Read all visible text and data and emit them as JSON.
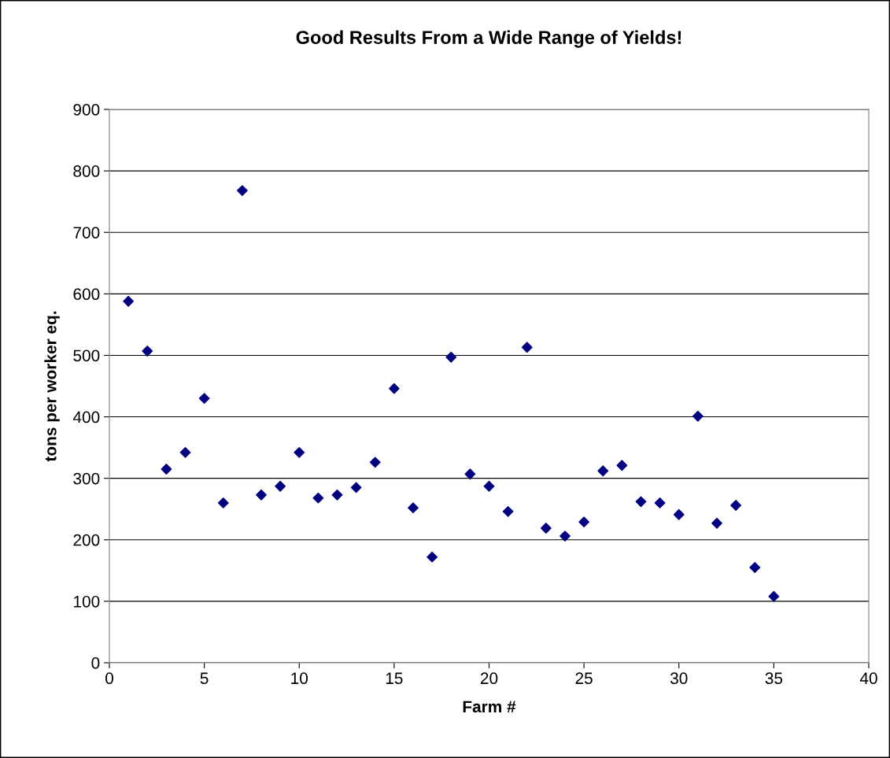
{
  "chart_data": {
    "type": "scatter",
    "title": "Good Results From a Wide Range of Yields!",
    "xlabel": "Farm #",
    "ylabel": "tons per worker eq.",
    "x": [
      1,
      2,
      3,
      4,
      5,
      6,
      7,
      8,
      9,
      10,
      11,
      12,
      13,
      14,
      15,
      16,
      17,
      18,
      19,
      20,
      21,
      22,
      23,
      24,
      25,
      26,
      27,
      28,
      29,
      30,
      31,
      32,
      33,
      34,
      35
    ],
    "series": [
      {
        "color": "#000080",
        "values": [
          588,
          507,
          315,
          342,
          430,
          260,
          768,
          273,
          287,
          342,
          268,
          273,
          285,
          326,
          446,
          252,
          172,
          497,
          307,
          287,
          246,
          513,
          219,
          206,
          229,
          312,
          321,
          262,
          260,
          241,
          401,
          227,
          256,
          155,
          108
        ]
      }
    ],
    "xlim": [
      0,
      40
    ],
    "xticks": [
      0,
      5,
      10,
      15,
      20,
      25,
      30,
      35,
      40
    ],
    "ylim": [
      0,
      900
    ],
    "yticks": [
      0,
      100,
      200,
      300,
      400,
      500,
      600,
      700,
      800,
      900
    ],
    "grid": "y",
    "marker": "diamond",
    "legend": false
  }
}
